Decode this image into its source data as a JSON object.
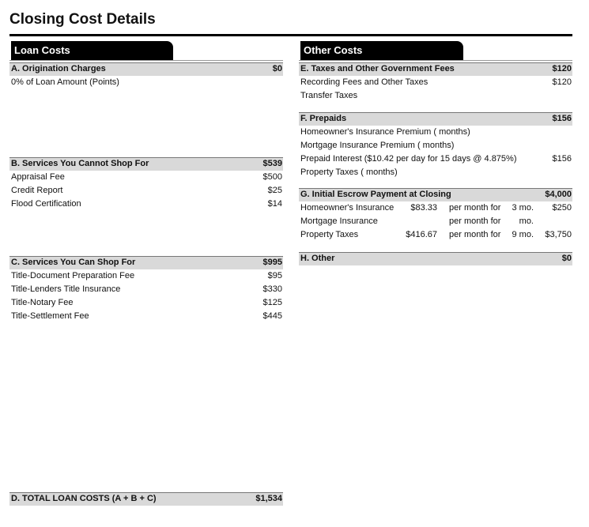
{
  "title": "Closing Cost Details",
  "loan_costs": {
    "heading": "Loan Costs",
    "sections": [
      {
        "title": "A. Origination Charges",
        "total": "$0",
        "items": [
          {
            "label": "0% of Loan Amount (Points)"
          }
        ]
      },
      {
        "title": "B. Services You Cannot Shop For",
        "total": "$539",
        "items": [
          {
            "label": "Appraisal Fee",
            "amount": "$500"
          },
          {
            "label": "Credit Report",
            "amount": "$25"
          },
          {
            "label": "Flood Certification",
            "amount": "$14"
          }
        ]
      },
      {
        "title": "C. Services You Can Shop For",
        "total": "$995",
        "items": [
          {
            "label": "Title-Document Preparation Fee",
            "amount": "$95"
          },
          {
            "label": "Title-Lenders Title Insurance",
            "amount": "$330"
          },
          {
            "label": "Title-Notary Fee",
            "amount": "$125"
          },
          {
            "label": "Title-Settlement Fee",
            "amount": "$445"
          }
        ]
      }
    ]
  },
  "total_loan_costs": {
    "label": "D. TOTAL LOAN COSTS (A + B + C)",
    "amount": "$1,534"
  },
  "other_costs": {
    "heading": "Other Costs",
    "sections": [
      {
        "title": "E. Taxes and Other Government Fees",
        "total": "$120",
        "items": [
          {
            "label": "Recording Fees and Other Taxes",
            "amount": "$120"
          },
          {
            "label": "Transfer Taxes"
          }
        ]
      },
      {
        "title": "F. Prepaids",
        "total": "$156",
        "items": [
          {
            "label": "Homeowner's Insurance Premium ( months)"
          },
          {
            "label": "Mortgage Insurance Premium ( months)"
          },
          {
            "label": "Prepaid Interest ($10.42 per day for 15 days @ 4.875%)",
            "amount": "$156"
          },
          {
            "label": "Property Taxes ( months)"
          }
        ]
      },
      {
        "title": "G. Initial Escrow Payment at Closing",
        "total": "$4,000",
        "items": [
          {
            "label": "Homeowner's Insurance",
            "rate": "$83.33",
            "per": "per month for",
            "months": "3 mo.",
            "amount": "$250"
          },
          {
            "label": "Mortgage Insurance",
            "per": "per month for",
            "months": "mo."
          },
          {
            "label": "Property Taxes",
            "rate": "$416.67",
            "per": "per month for",
            "months": "9 mo.",
            "amount": "$3,750"
          }
        ]
      },
      {
        "title": "H. Other",
        "total": "$0",
        "items": []
      }
    ]
  }
}
